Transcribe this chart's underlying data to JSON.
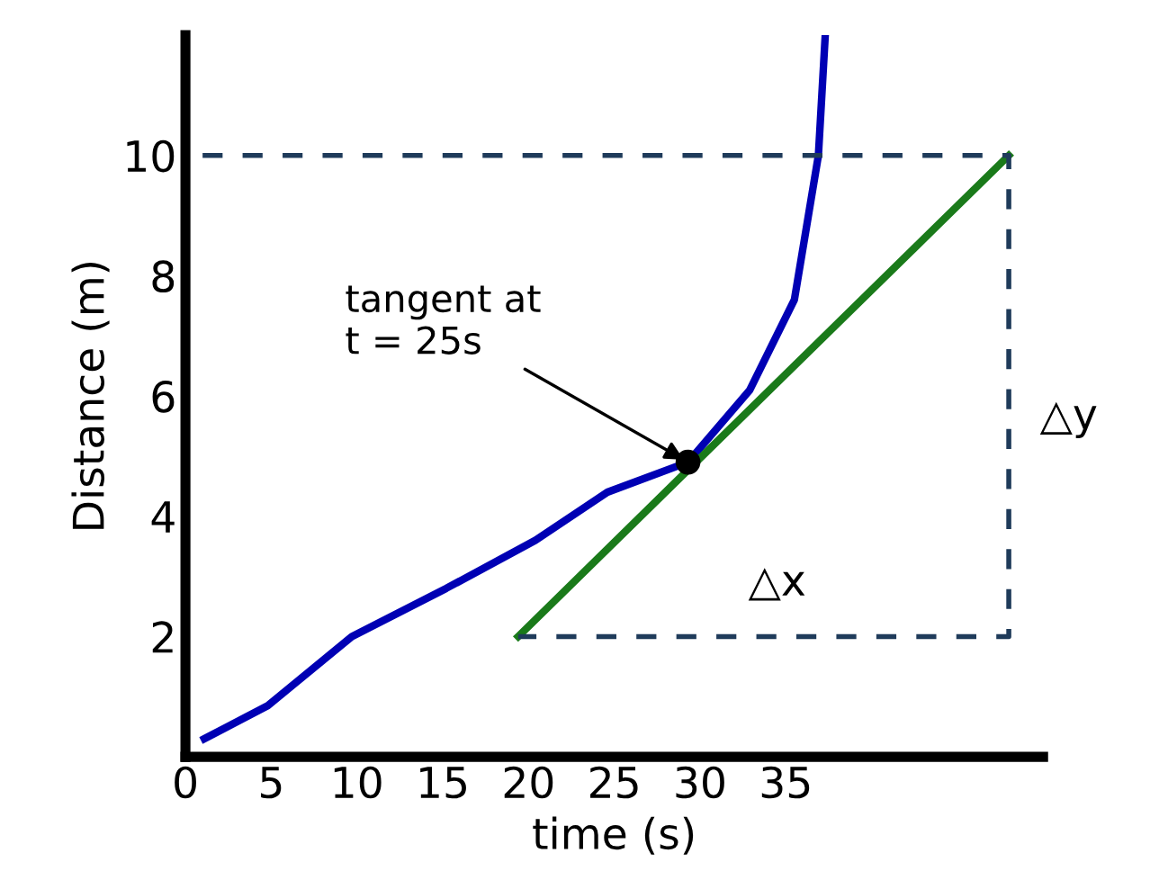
{
  "chart_data": {
    "type": "line",
    "xlabel": "time (s)",
    "ylabel": "Distance (m)",
    "xlim": [
      0,
      50
    ],
    "ylim": [
      0,
      12
    ],
    "xticks": [
      0,
      5,
      10,
      15,
      20,
      25,
      30,
      35
    ],
    "yticks": [
      2,
      4,
      6,
      8,
      10
    ],
    "grid": false,
    "legend": false,
    "series": [
      {
        "color": "#0000b4",
        "x": [
          1.1,
          4.8,
          9.7,
          15.2,
          20.4,
          24.6,
          29.3,
          32.9,
          35.5,
          36.9,
          37.3
        ],
        "values": [
          0.3,
          0.85,
          2.0,
          2.8,
          3.6,
          4.4,
          4.9,
          6.1,
          7.6,
          10,
          12
        ]
      },
      {
        "color": "#1a7a1a",
        "x": [
          19.4,
          48
        ],
        "values": [
          2,
          10
        ]
      },
      {
        "color": "#1f3b5a",
        "line_style": "dashed",
        "x": [
          1,
          48,
          48,
          19.4
        ],
        "values": [
          10,
          10,
          2,
          2
        ]
      },
      {
        "type": "scatter",
        "color": "#000000",
        "marker": "circle",
        "x": [
          29.3
        ],
        "values": [
          4.9
        ]
      }
    ],
    "annotations": [
      {
        "text": "tangent at\nt = 25s",
        "x": 29.3,
        "y": 4.9
      },
      "△x",
      "△y"
    ]
  }
}
